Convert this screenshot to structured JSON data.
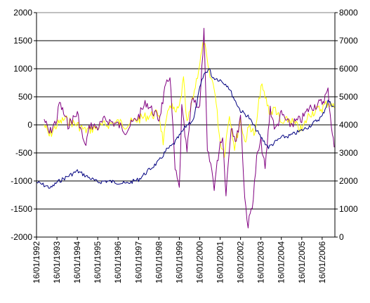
{
  "chart_data": {
    "type": "line",
    "title": "",
    "xlabel": "",
    "ylabel": "",
    "x_ticks": [
      "16/01/1992",
      "16/01/1993",
      "16/01/1994",
      "16/01/1995",
      "16/01/1996",
      "16/01/1997",
      "16/01/1998",
      "16/01/1999",
      "16/01/2000",
      "16/01/2001",
      "16/01/2002",
      "16/01/2003",
      "16/01/2004",
      "16/01/2005",
      "16/01/2006"
    ],
    "xlim": [
      "1992-01-16",
      "2006-09-01"
    ],
    "y_left": {
      "ticks": [
        "2000",
        "1500",
        "1000",
        "500",
        "0",
        "-500",
        "-1000",
        "-1500",
        "-2000"
      ],
      "range": [
        -2000,
        2000
      ]
    },
    "y_right": {
      "ticks": [
        "8000",
        "7000",
        "6000",
        "5000",
        "4000",
        "3000",
        "2000",
        "1000",
        "0"
      ],
      "range": [
        0,
        8000
      ]
    },
    "grid": "horizontal",
    "legend": "none",
    "colors": {
      "navy": "#000080",
      "purple": "#800080",
      "yellow": "#ffff00",
      "grid": "#000000",
      "border": "#808080"
    },
    "series": [
      {
        "color": "#000080",
        "axis": "right",
        "x": [
          "1992-01-16",
          "1992-06-01",
          "1992-10-01",
          "1993-01-16",
          "1993-06-01",
          "1994-01-16",
          "1994-06-01",
          "1995-01-16",
          "1995-06-01",
          "1996-01-16",
          "1996-06-01",
          "1997-01-16",
          "1997-06-01",
          "1998-01-16",
          "1998-06-01",
          "1998-10-01",
          "1999-01-16",
          "1999-06-01",
          "1999-10-01",
          "2000-01-16",
          "2000-04-01",
          "2000-07-01",
          "2000-09-01",
          "2001-01-16",
          "2001-06-01",
          "2001-10-01",
          "2002-01-16",
          "2002-06-01",
          "2002-10-01",
          "2003-01-16",
          "2003-06-01",
          "2004-01-16",
          "2004-06-01",
          "2005-01-16",
          "2005-06-01",
          "2006-01-16",
          "2006-05-01",
          "2006-08-15"
        ],
        "y": [
          1950,
          1850,
          1750,
          1950,
          2100,
          2350,
          2200,
          1950,
          2000,
          1950,
          1900,
          2050,
          2300,
          2700,
          3100,
          3300,
          3600,
          4000,
          4200,
          5300,
          5800,
          6000,
          5700,
          5600,
          5400,
          4900,
          4500,
          4300,
          3900,
          3550,
          3200,
          3550,
          3600,
          3800,
          3950,
          4300,
          4850,
          4650
        ]
      },
      {
        "color": "#800080",
        "axis": "left",
        "x": [
          "1992-06-01",
          "1992-09-01",
          "1993-01-16",
          "1993-03-01",
          "1993-08-01",
          "1994-01-16",
          "1994-06-01",
          "1994-09-01",
          "1995-01-16",
          "1995-06-01",
          "1996-01-16",
          "1996-06-01",
          "1997-01-16",
          "1997-06-01",
          "1998-01-16",
          "1998-05-01",
          "1998-08-01",
          "1998-11-01",
          "1999-01-16",
          "1999-03-01",
          "1999-06-01",
          "1999-09-01",
          "2000-01-16",
          "2000-04-01",
          "2000-06-01",
          "2000-08-01",
          "2000-10-01",
          "2001-01-16",
          "2001-03-01",
          "2001-05-01",
          "2001-08-01",
          "2001-11-01",
          "2002-01-16",
          "2002-04-01",
          "2002-06-01",
          "2002-09-01",
          "2002-11-01",
          "2003-01-16",
          "2003-04-01",
          "2003-07-01",
          "2003-10-01",
          "2004-01-16",
          "2004-06-01",
          "2005-01-16",
          "2005-06-01",
          "2006-01-16",
          "2006-05-01",
          "2006-07-01",
          "2006-08-20"
        ],
        "y": [
          100,
          -150,
          100,
          400,
          0,
          200,
          -400,
          0,
          -50,
          100,
          0,
          -100,
          150,
          400,
          100,
          600,
          900,
          -800,
          -1150,
          300,
          -500,
          500,
          300,
          1650,
          -500,
          -700,
          -1100,
          -300,
          -200,
          -1200,
          0,
          -300,
          200,
          -1300,
          -1800,
          -1300,
          -600,
          -300,
          -800,
          300,
          -100,
          200,
          0,
          100,
          300,
          400,
          600,
          0,
          -400
        ]
      },
      {
        "color": "#ffff00",
        "axis": "left",
        "x": [
          "1992-06-01",
          "1992-09-01",
          "1993-01-16",
          "1993-06-01",
          "1994-01-16",
          "1994-06-01",
          "1995-01-16",
          "1995-06-01",
          "1996-01-16",
          "1996-06-01",
          "1997-01-16",
          "1997-06-01",
          "1998-01-16",
          "1998-04-01",
          "1998-08-01",
          "1998-11-01",
          "1999-01-16",
          "1999-04-01",
          "1999-06-01",
          "1999-09-01",
          "2000-01-16",
          "2000-04-01",
          "2000-07-01",
          "2000-10-01",
          "2001-01-16",
          "2001-04-01",
          "2001-07-01",
          "2001-10-01",
          "2002-01-16",
          "2002-04-01",
          "2002-07-01",
          "2002-10-01",
          "2003-01-16",
          "2003-04-01",
          "2003-07-01",
          "2003-10-01",
          "2004-01-16",
          "2004-06-01",
          "2005-01-16",
          "2005-06-01",
          "2006-01-16",
          "2006-05-01",
          "2006-08-20"
        ],
        "y": [
          0,
          -200,
          0,
          100,
          0,
          -100,
          -50,
          0,
          50,
          0,
          100,
          150,
          200,
          -300,
          400,
          200,
          300,
          800,
          0,
          400,
          1100,
          1500,
          900,
          700,
          -300,
          -500,
          200,
          -400,
          100,
          -300,
          0,
          -200,
          700,
          500,
          200,
          300,
          0,
          100,
          -100,
          200,
          300,
          400,
          300
        ]
      }
    ]
  }
}
